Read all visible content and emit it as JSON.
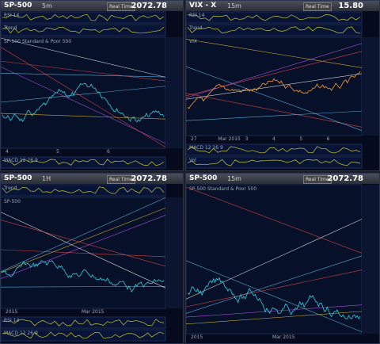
{
  "panels": [
    {
      "symbol": "SP-500",
      "interval": "5m",
      "price": "2072.78",
      "button": "Real Time",
      "top_panes": [
        "RSI 14",
        "Trend"
      ],
      "main_label": "SP-500 Standard & Poor 500",
      "bottom_panes": [
        "MACD 12 26 9"
      ],
      "x_labels": [
        "4",
        "5",
        "6"
      ]
    },
    {
      "symbol": "VIX - X",
      "interval": "15m",
      "price": "15.80",
      "button": "Real Time",
      "top_panes": [
        "RSI 14",
        "Trend"
      ],
      "main_label": "VIX",
      "bottom_panes": [
        "MACD 12 26 9",
        "Vol"
      ],
      "x_labels": [
        "27",
        "Mar 2015",
        "3",
        "4",
        "5",
        "6"
      ]
    },
    {
      "symbol": "SP-500",
      "interval": "1H",
      "price": "2072.78",
      "button": "Real Time",
      "top_panes": [
        "Trend"
      ],
      "main_label": "SP-500",
      "bottom_panes": [
        "RSI 14",
        "MACD 12 26 9"
      ],
      "x_labels": [
        "2015",
        "Mar 2015"
      ]
    },
    {
      "symbol": "SP-500",
      "interval": "15m",
      "price": "2072.78",
      "button": "Real Time",
      "top_panes": [],
      "main_label": "SP-500 Standard & Poor 500",
      "bottom_panes": [],
      "x_labels": [
        "2015",
        "Mar 2015"
      ]
    }
  ]
}
